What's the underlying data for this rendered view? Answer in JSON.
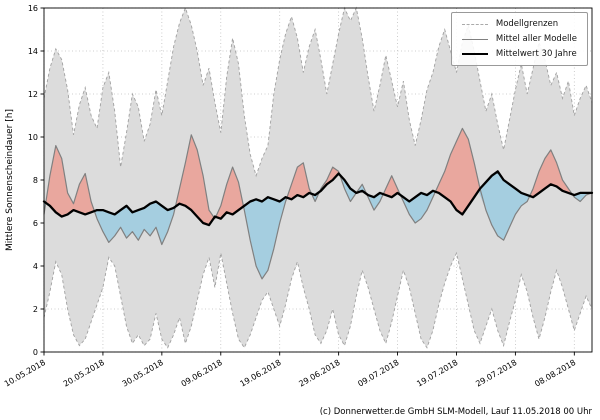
{
  "footer": "(c) Donnerwetter.de GmbH SLM-Modell, Lauf 11.05.2018 00 Uhr",
  "chart_data": {
    "type": "area",
    "title": "",
    "xlabel": "",
    "ylabel": "Mittlere Sonnenscheindauer [h]",
    "ylim": [
      0,
      16
    ],
    "yticks": [
      0,
      2,
      4,
      6,
      8,
      10,
      12,
      14,
      16
    ],
    "grid": true,
    "legend_position": "upper right",
    "legend_labels": [
      "Modellgrenzen",
      "Mittel aller Modelle",
      "Mittelwert 30 Jahre"
    ],
    "x_axis": {
      "tick_labels": [
        "10.05.2018",
        "20.05.2018",
        "30.05.2018",
        "09.06.2018",
        "19.06.2018",
        "29.06.2018",
        "09.07.2018",
        "19.07.2018",
        "29.07.2018",
        "08.08.2018"
      ],
      "tick_positions_days": [
        0,
        10,
        20,
        30,
        40,
        50,
        60,
        70,
        80,
        90
      ],
      "n_points": 94
    },
    "colors": {
      "band_fill": "#dcdcdc",
      "band_edge": "#a0a0a0",
      "above_fill": "#e9a79e",
      "below_fill": "#a5cee0",
      "mean_line": "#808080",
      "clim_line": "#000000",
      "grid_line": "#c0c0c0"
    },
    "series": [
      {
        "name": "Modellgrenzen oben",
        "role": "upper_bound",
        "values": [
          11.8,
          13.2,
          14.1,
          13.6,
          12.2,
          10.1,
          11.5,
          12.3,
          11.0,
          10.4,
          12.3,
          13.0,
          11.2,
          8.6,
          10.2,
          12.0,
          11.4,
          9.8,
          10.6,
          12.2,
          11.0,
          12.6,
          14.2,
          15.3,
          16.0,
          15.2,
          14.0,
          12.4,
          13.2,
          11.6,
          10.2,
          12.8,
          14.6,
          13.4,
          11.0,
          9.2,
          8.2,
          9.0,
          9.6,
          12.0,
          13.6,
          14.8,
          15.6,
          14.6,
          13.0,
          14.2,
          15.0,
          13.6,
          12.0,
          13.4,
          14.8,
          16.0,
          15.4,
          16.0,
          14.6,
          12.8,
          11.2,
          12.4,
          13.8,
          12.6,
          11.4,
          12.6,
          10.8,
          9.6,
          10.8,
          12.2,
          13.0,
          14.2,
          15.0,
          14.0,
          13.0,
          14.4,
          15.2,
          14.0,
          12.6,
          11.2,
          12.0,
          10.6,
          9.4,
          10.8,
          12.2,
          13.4,
          12.0,
          13.2,
          14.4,
          13.6,
          12.4,
          13.0,
          11.8,
          12.6,
          11.0,
          11.8,
          12.4,
          11.6
        ]
      },
      {
        "name": "Modellgrenzen unten",
        "role": "lower_bound",
        "values": [
          1.6,
          2.8,
          4.2,
          3.6,
          2.0,
          0.8,
          0.3,
          0.6,
          1.4,
          2.2,
          3.0,
          4.4,
          4.0,
          2.6,
          1.2,
          0.4,
          0.8,
          0.3,
          0.6,
          1.8,
          0.6,
          0.2,
          0.8,
          1.6,
          0.4,
          1.2,
          2.4,
          3.6,
          4.4,
          3.0,
          4.6,
          3.2,
          1.8,
          0.6,
          0.2,
          0.8,
          1.6,
          2.4,
          2.8,
          2.0,
          1.2,
          2.2,
          3.4,
          4.2,
          3.0,
          2.0,
          0.8,
          0.4,
          1.0,
          2.0,
          0.8,
          0.3,
          1.2,
          2.6,
          3.8,
          3.0,
          2.0,
          1.0,
          0.4,
          1.4,
          2.6,
          3.8,
          3.0,
          1.8,
          0.6,
          0.2,
          1.0,
          2.2,
          3.2,
          4.0,
          4.6,
          3.4,
          2.2,
          1.0,
          0.4,
          1.2,
          2.0,
          1.0,
          0.3,
          1.4,
          2.4,
          3.6,
          2.8,
          1.6,
          0.6,
          1.6,
          2.8,
          3.8,
          3.0,
          2.0,
          1.0,
          1.8,
          2.6,
          2.0
        ]
      },
      {
        "name": "Mittel aller Modelle",
        "role": "model_mean",
        "values": [
          6.4,
          8.2,
          9.6,
          9.0,
          7.4,
          6.9,
          7.8,
          8.3,
          7.0,
          6.2,
          5.6,
          5.1,
          5.4,
          5.8,
          5.3,
          5.6,
          5.2,
          5.7,
          5.4,
          5.8,
          5.0,
          5.6,
          6.4,
          7.6,
          8.8,
          10.1,
          9.4,
          8.2,
          6.6,
          6.2,
          6.8,
          7.8,
          8.6,
          7.9,
          6.6,
          5.2,
          4.0,
          3.4,
          3.8,
          4.8,
          6.0,
          7.0,
          7.8,
          8.6,
          8.8,
          7.6,
          7.0,
          7.6,
          8.0,
          8.6,
          8.4,
          7.6,
          7.0,
          7.4,
          7.8,
          7.2,
          6.6,
          7.0,
          7.6,
          8.2,
          7.6,
          7.0,
          6.4,
          6.0,
          6.2,
          6.6,
          7.2,
          7.8,
          8.4,
          9.2,
          9.8,
          10.4,
          9.9,
          8.8,
          7.6,
          6.6,
          5.9,
          5.4,
          5.2,
          5.8,
          6.4,
          6.8,
          7.0,
          7.6,
          8.4,
          9.0,
          9.4,
          8.8,
          8.0,
          7.6,
          7.2,
          7.0,
          7.3,
          7.4
        ]
      },
      {
        "name": "Mittelwert 30 Jahre",
        "role": "climate_mean_30y",
        "values": [
          7.0,
          6.8,
          6.5,
          6.3,
          6.4,
          6.6,
          6.5,
          6.4,
          6.5,
          6.6,
          6.6,
          6.5,
          6.4,
          6.6,
          6.8,
          6.5,
          6.6,
          6.7,
          6.9,
          7.0,
          6.8,
          6.6,
          6.7,
          6.9,
          6.8,
          6.6,
          6.3,
          6.0,
          5.9,
          6.3,
          6.2,
          6.5,
          6.4,
          6.6,
          6.8,
          7.0,
          7.1,
          7.0,
          7.2,
          7.1,
          7.0,
          7.2,
          7.1,
          7.3,
          7.2,
          7.4,
          7.3,
          7.5,
          7.8,
          8.0,
          8.3,
          8.0,
          7.6,
          7.4,
          7.5,
          7.3,
          7.2,
          7.4,
          7.3,
          7.2,
          7.4,
          7.2,
          7.0,
          7.2,
          7.4,
          7.3,
          7.5,
          7.4,
          7.2,
          7.0,
          6.6,
          6.4,
          6.8,
          7.2,
          7.6,
          7.9,
          8.2,
          8.4,
          8.0,
          7.8,
          7.6,
          7.4,
          7.3,
          7.2,
          7.4,
          7.6,
          7.8,
          7.7,
          7.5,
          7.4,
          7.3,
          7.4,
          7.4,
          7.4
        ]
      }
    ]
  }
}
